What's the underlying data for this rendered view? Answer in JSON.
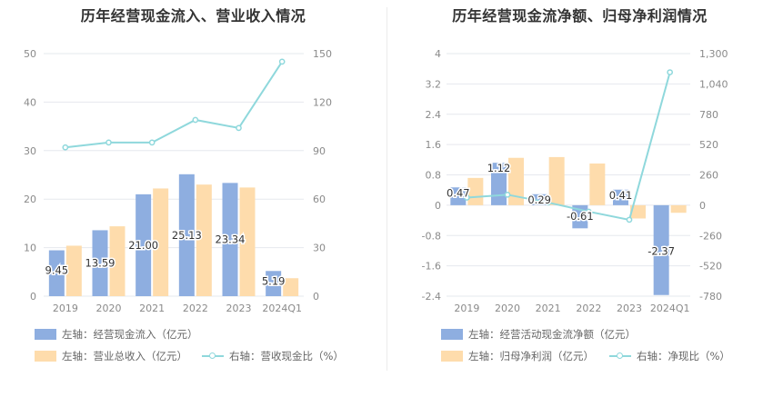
{
  "colors": {
    "bar_primary": "#8eaee0",
    "bar_secondary": "#fedcac",
    "line": "#8fd8dc",
    "grid": "#e6e8ee"
  },
  "left": {
    "title": "历年经营现金流入、营业收入情况",
    "legend": {
      "series1": "左轴：经营现金流入（亿元）",
      "series2": "左轴：营业总收入（亿元）",
      "series3": "右轴：营收现金比（%）"
    }
  },
  "right": {
    "title": "历年经营现金流净额、归母净利润情况",
    "legend": {
      "series1": "左轴：经营活动现金流净额（亿元）",
      "series2": "左轴：归母净利润（亿元）",
      "series3": "右轴：净现比（%）"
    }
  },
  "chart_data": [
    {
      "type": "bar",
      "title": "历年经营现金流入、营业收入情况",
      "categories": [
        "2019",
        "2020",
        "2021",
        "2022",
        "2023",
        "2024Q1"
      ],
      "left_axis": {
        "ylim": [
          0,
          50
        ],
        "ticks": [
          "0",
          "10",
          "20",
          "30",
          "40",
          "50"
        ]
      },
      "right_axis": {
        "ylim": [
          0,
          150
        ],
        "ticks": [
          "0",
          "30",
          "60",
          "90",
          "120",
          "150"
        ]
      },
      "series": [
        {
          "name": "左轴：经营现金流入（亿元）",
          "kind": "bar",
          "axis": "left",
          "values": [
            9.45,
            13.59,
            21.0,
            25.13,
            23.34,
            5.19
          ],
          "labels": [
            "9.45",
            "13.59",
            "21.00",
            "25.13",
            "23.34",
            "5.19"
          ]
        },
        {
          "name": "左轴：营业总收入（亿元）",
          "kind": "bar",
          "axis": "left",
          "values": [
            10.4,
            14.4,
            22.2,
            23.0,
            22.4,
            3.7
          ]
        },
        {
          "name": "右轴：营收现金比（%）",
          "kind": "line",
          "axis": "right",
          "values": [
            92,
            95,
            95,
            109,
            104,
            145
          ]
        }
      ]
    },
    {
      "type": "bar",
      "title": "历年经营现金流净额、归母净利润情况",
      "categories": [
        "2019",
        "2020",
        "2021",
        "2022",
        "2023",
        "2024Q1"
      ],
      "left_axis": {
        "ylim": [
          -2.4,
          4
        ],
        "ticks": [
          "-2.4",
          "-1.6",
          "-0.8",
          "0",
          "0.8",
          "1.6",
          "2.4",
          "3.2",
          "4"
        ]
      },
      "right_axis": {
        "ylim": [
          -780,
          1300
        ],
        "ticks": [
          "-780",
          "-520",
          "-260",
          "0",
          "260",
          "520",
          "780",
          "1,040",
          "1,300"
        ]
      },
      "series": [
        {
          "name": "左轴：经营活动现金流净额（亿元）",
          "kind": "bar",
          "axis": "left",
          "values": [
            0.47,
            1.12,
            0.29,
            -0.61,
            0.41,
            -2.37
          ],
          "labels": [
            "0.47",
            "1.12",
            "0.29",
            "-0.61",
            "0.41",
            "-2.37"
          ]
        },
        {
          "name": "左轴：归母净利润（亿元）",
          "kind": "bar",
          "axis": "left",
          "values": [
            0.72,
            1.25,
            1.27,
            1.1,
            -0.35,
            -0.2
          ]
        },
        {
          "name": "右轴：净现比（%）",
          "kind": "line",
          "axis": "right",
          "values": [
            65,
            90,
            23,
            -55,
            -125,
            1140
          ]
        }
      ]
    }
  ]
}
